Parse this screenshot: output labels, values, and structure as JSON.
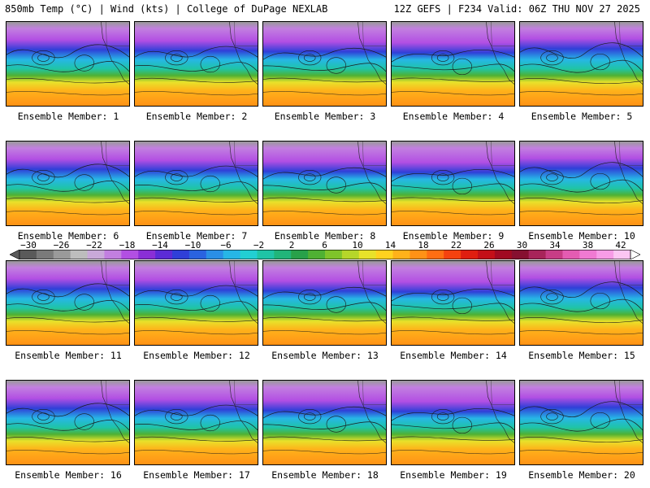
{
  "header": {
    "left": "850mb Temp (°C) | Wind (kts) | College of DuPage NEXLAB",
    "right": "12Z GEFS | F234 Valid: 06Z THU NOV 27 2025"
  },
  "caption_prefix": "Ensemble Member:",
  "members": [
    {
      "number": "1"
    },
    {
      "number": "2"
    },
    {
      "number": "3"
    },
    {
      "number": "4"
    },
    {
      "number": "5"
    },
    {
      "number": "6"
    },
    {
      "number": "7"
    },
    {
      "number": "8"
    },
    {
      "number": "9"
    },
    {
      "number": "10"
    },
    {
      "number": "11"
    },
    {
      "number": "12"
    },
    {
      "number": "13"
    },
    {
      "number": "14"
    },
    {
      "number": "15"
    },
    {
      "number": "16"
    },
    {
      "number": "17"
    },
    {
      "number": "18"
    },
    {
      "number": "19"
    },
    {
      "number": "20"
    }
  ],
  "colorbar": {
    "labels": [
      "−30",
      "−26",
      "−22",
      "−18",
      "−14",
      "−10",
      "−6",
      "−2",
      "2",
      "6",
      "10",
      "14",
      "18",
      "22",
      "26",
      "30",
      "34",
      "38",
      "42"
    ],
    "colors": [
      "#5a5a5a",
      "#7a7a7a",
      "#9a9a9a",
      "#bdbdbd",
      "#c9a9d9",
      "#c27fe0",
      "#b24fe3",
      "#8a2fd6",
      "#5b2bd6",
      "#2f3fd8",
      "#2a63e0",
      "#2a8fe6",
      "#27b6e6",
      "#22cfd3",
      "#1fc4a6",
      "#21b57a",
      "#28a14a",
      "#4fb133",
      "#7fc42a",
      "#b6d62a",
      "#e8e22a",
      "#ffd21f",
      "#ffb21a",
      "#ff9216",
      "#ff6e12",
      "#f5420f",
      "#e01e10",
      "#c40f18",
      "#a10a22",
      "#861030",
      "#a8245a",
      "#c83d86",
      "#e45cb2",
      "#f07ad2",
      "#f79ce6",
      "#fcc6f2"
    ]
  }
}
